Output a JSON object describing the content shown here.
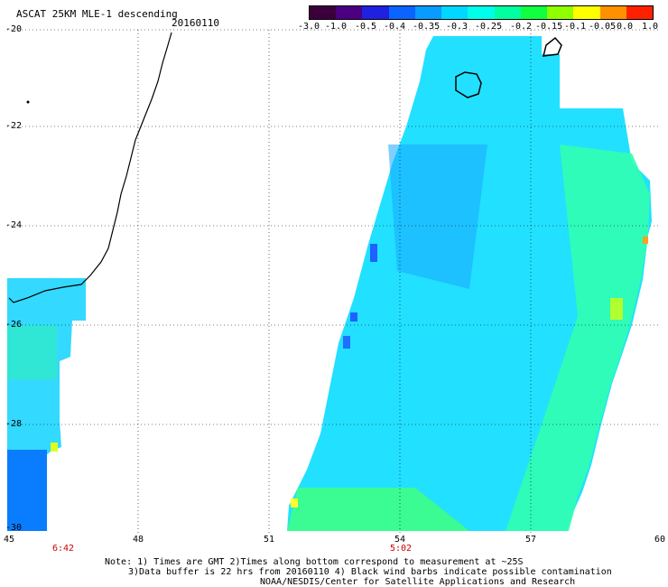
{
  "header": {
    "title": "ASCAT 25KM MLE-1 descending",
    "date": "20160110"
  },
  "colorbar": {
    "tick_labels": [
      "-3.0",
      "-1.0",
      "-0.5",
      "-0.4",
      "-0.35",
      "-0.3",
      "-0.25",
      "-0.2",
      "-0.15",
      "-0.1",
      "-0.05",
      "0.0",
      "1.0"
    ],
    "colors": [
      "#3b003b",
      "#4a0080",
      "#2020e0",
      "#0a64ff",
      "#0a9bff",
      "#00d8ff",
      "#00ffea",
      "#00ffa0",
      "#10ff40",
      "#90ff00",
      "#ffff00",
      "#ff9000",
      "#ff2000"
    ]
  },
  "axes": {
    "x_labels": [
      "45",
      "48",
      "51",
      "54",
      "57",
      "60"
    ],
    "y_labels": [
      "-20",
      "-22",
      "-24",
      "-26",
      "-28",
      "-30"
    ]
  },
  "times": [
    "6:42",
    "5:02"
  ],
  "notes": {
    "line1": "Note: 1) Times are GMT 2)Times along bottom correspond to measurement at ~25S",
    "line2": "3)Data buffer is 22 hrs from 20160110 4) Black wind barbs indicate possible contamination",
    "line3": "NOAA/NESDIS/Center for Satellite Applications and Research"
  }
}
